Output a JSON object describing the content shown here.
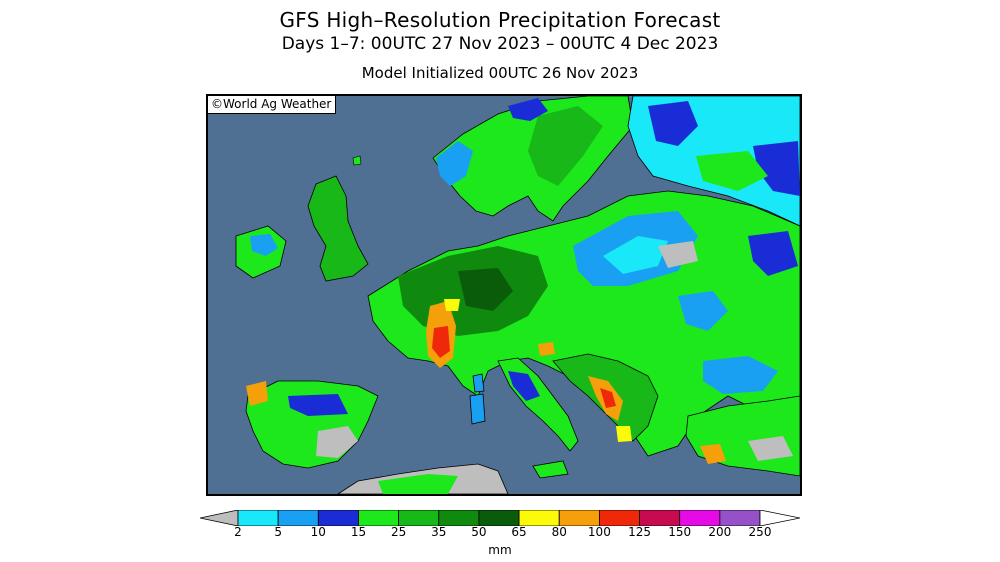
{
  "title": "GFS High–Resolution Precipitation Forecast",
  "subtitle": "Days 1–7: 00UTC 27 Nov 2023 – 00UTC 4 Dec 2023",
  "init_line": "Model Initialized 00UTC 26 Nov 2023",
  "credit": "©World Ag Weather",
  "colorbar": {
    "unit": "mm",
    "ticks": [
      "2",
      "5",
      "10",
      "15",
      "25",
      "35",
      "50",
      "65",
      "80",
      "100",
      "125",
      "150",
      "200",
      "250"
    ],
    "colors": [
      "#bebebe",
      "#18e8f8",
      "#1aa0f2",
      "#1a2cd6",
      "#1ce81c",
      "#18b818",
      "#0f8a0f",
      "#0a5c0a",
      "#fafa0a",
      "#f5a00a",
      "#f0280a",
      "#c80a50",
      "#e60ae6",
      "#9650c8",
      "#ffffff"
    ]
  },
  "map": {
    "ocean_color": "#4f6f93",
    "dry_color": "#bebebe"
  }
}
